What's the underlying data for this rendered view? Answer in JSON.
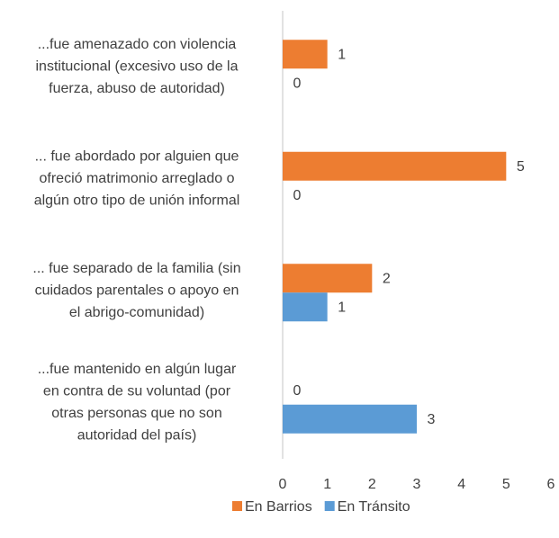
{
  "chart_data": {
    "type": "bar",
    "orientation": "horizontal",
    "categories": [
      [
        "...fue amenazado con violencia",
        "institucional (excesivo uso de la",
        "fuerza, abuso de autoridad)"
      ],
      [
        "... fue abordado por alguien que",
        "ofreció matrimonio arreglado o",
        "algún otro tipo de unión informal"
      ],
      [
        "... fue separado de la familia (sin",
        "cuidados parentales o apoyo en",
        "el abrigo-comunidad)"
      ],
      [
        "...fue mantenido en algún lugar",
        "en contra de su voluntad (por",
        "otras personas que no son",
        "autoridad del país)"
      ]
    ],
    "series": [
      {
        "name": "En Barrios",
        "color": "#ED7D31",
        "values": [
          1,
          5,
          2,
          0
        ]
      },
      {
        "name": "En Tránsito",
        "color": "#5B9BD5",
        "values": [
          0,
          0,
          1,
          3
        ]
      }
    ],
    "xlim": [
      0,
      6
    ],
    "xticks": [
      0,
      1,
      2,
      3,
      4,
      5,
      6
    ],
    "legend": "bottom"
  }
}
